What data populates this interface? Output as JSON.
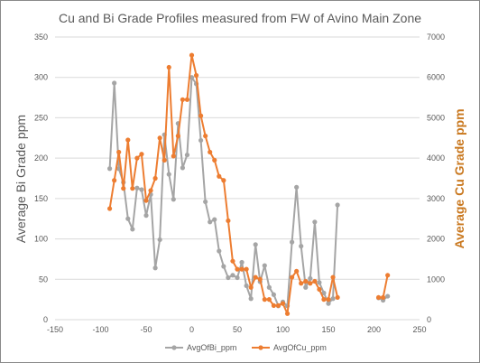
{
  "chart_data": {
    "type": "line",
    "title": "Cu and Bi Grade Profiles measured from FW of Avino Main Zone",
    "xlabel": "",
    "ylabel": "Average Bi Grade ppm",
    "y2label": "Average Cu Grade ppm",
    "xlim": [
      -150,
      250
    ],
    "ylim": [
      0,
      350
    ],
    "y2lim": [
      0,
      7000
    ],
    "x_ticks": [
      -150,
      -100,
      -50,
      0,
      50,
      100,
      150,
      200,
      250
    ],
    "y_ticks": [
      0,
      50,
      100,
      150,
      200,
      250,
      300,
      350
    ],
    "y2_ticks": [
      0,
      1000,
      2000,
      3000,
      4000,
      5000,
      6000,
      7000
    ],
    "grid": "horizontal",
    "legend_position": "bottom",
    "series": [
      {
        "name": "AvgOfBi_ppm",
        "axis": "left",
        "color": "#a5a5a5",
        "segments": [
          [
            [
              -90,
              187
            ],
            [
              -85,
              293
            ],
            [
              -80,
              187
            ],
            [
              -75,
              170
            ],
            [
              -70,
              125
            ],
            [
              -65,
              112
            ],
            [
              -60,
              163
            ],
            [
              -55,
              161
            ],
            [
              -50,
              129
            ],
            [
              -45,
              155
            ],
            [
              -40,
              64
            ],
            [
              -35,
              99
            ],
            [
              -30,
              229
            ],
            [
              -25,
              180
            ],
            [
              -20,
              149
            ],
            [
              -15,
              243
            ],
            [
              -10,
              188
            ],
            [
              -5,
              204
            ],
            [
              0,
              300
            ],
            [
              5,
              292
            ],
            [
              10,
              222
            ],
            [
              15,
              146
            ],
            [
              20,
              121
            ],
            [
              25,
              124
            ],
            [
              30,
              85
            ],
            [
              35,
              66
            ],
            [
              40,
              52
            ],
            [
              45,
              55
            ],
            [
              50,
              52
            ],
            [
              55,
              71
            ],
            [
              60,
              42
            ],
            [
              65,
              26
            ],
            [
              70,
              93
            ],
            [
              75,
              47
            ],
            [
              80,
              67
            ],
            [
              85,
              40
            ],
            [
              90,
              31
            ],
            [
              95,
              17
            ],
            [
              100,
              22
            ],
            [
              105,
              17
            ],
            [
              110,
              96
            ],
            [
              115,
              164
            ],
            [
              120,
              91
            ],
            [
              125,
              40
            ],
            [
              130,
              51
            ],
            [
              135,
              121
            ],
            [
              140,
              46
            ],
            [
              145,
              33
            ],
            [
              150,
              20
            ],
            [
              155,
              26
            ],
            [
              160,
              142
            ]
          ],
          [
            [
              205,
              27
            ],
            [
              210,
              24
            ],
            [
              215,
              29
            ]
          ]
        ]
      },
      {
        "name": "AvgOfCu_ppm",
        "axis": "right",
        "color": "#ed7d31",
        "segments": [
          [
            [
              -90,
              2750
            ],
            [
              -85,
              3450
            ],
            [
              -80,
              4150
            ],
            [
              -75,
              3250
            ],
            [
              -70,
              4450
            ],
            [
              -65,
              3250
            ],
            [
              -60,
              4000
            ],
            [
              -55,
              4100
            ],
            [
              -50,
              2950
            ],
            [
              -45,
              3200
            ],
            [
              -40,
              3500
            ],
            [
              -35,
              4500
            ],
            [
              -30,
              3950
            ],
            [
              -25,
              6250
            ],
            [
              -20,
              4050
            ],
            [
              -15,
              4550
            ],
            [
              -10,
              5450
            ],
            [
              -5,
              5450
            ],
            [
              0,
              6550
            ],
            [
              5,
              6050
            ],
            [
              10,
              5050
            ],
            [
              15,
              4550
            ],
            [
              20,
              4150
            ],
            [
              25,
              3950
            ],
            [
              30,
              3550
            ],
            [
              35,
              3450
            ],
            [
              40,
              2450
            ],
            [
              45,
              1450
            ],
            [
              50,
              1250
            ],
            [
              55,
              1250
            ],
            [
              60,
              1250
            ],
            [
              65,
              800
            ],
            [
              70,
              1050
            ],
            [
              75,
              1000
            ],
            [
              80,
              500
            ],
            [
              85,
              500
            ],
            [
              90,
              350
            ],
            [
              95,
              350
            ],
            [
              100,
              400
            ],
            [
              105,
              150
            ],
            [
              110,
              1050
            ],
            [
              115,
              1200
            ],
            [
              120,
              900
            ],
            [
              125,
              950
            ],
            [
              130,
              900
            ],
            [
              135,
              950
            ],
            [
              140,
              750
            ],
            [
              145,
              500
            ],
            [
              150,
              500
            ],
            [
              155,
              1050
            ],
            [
              160,
              550
            ]
          ],
          [
            [
              205,
              550
            ],
            [
              210,
              550
            ],
            [
              215,
              1100
            ]
          ]
        ]
      }
    ]
  }
}
